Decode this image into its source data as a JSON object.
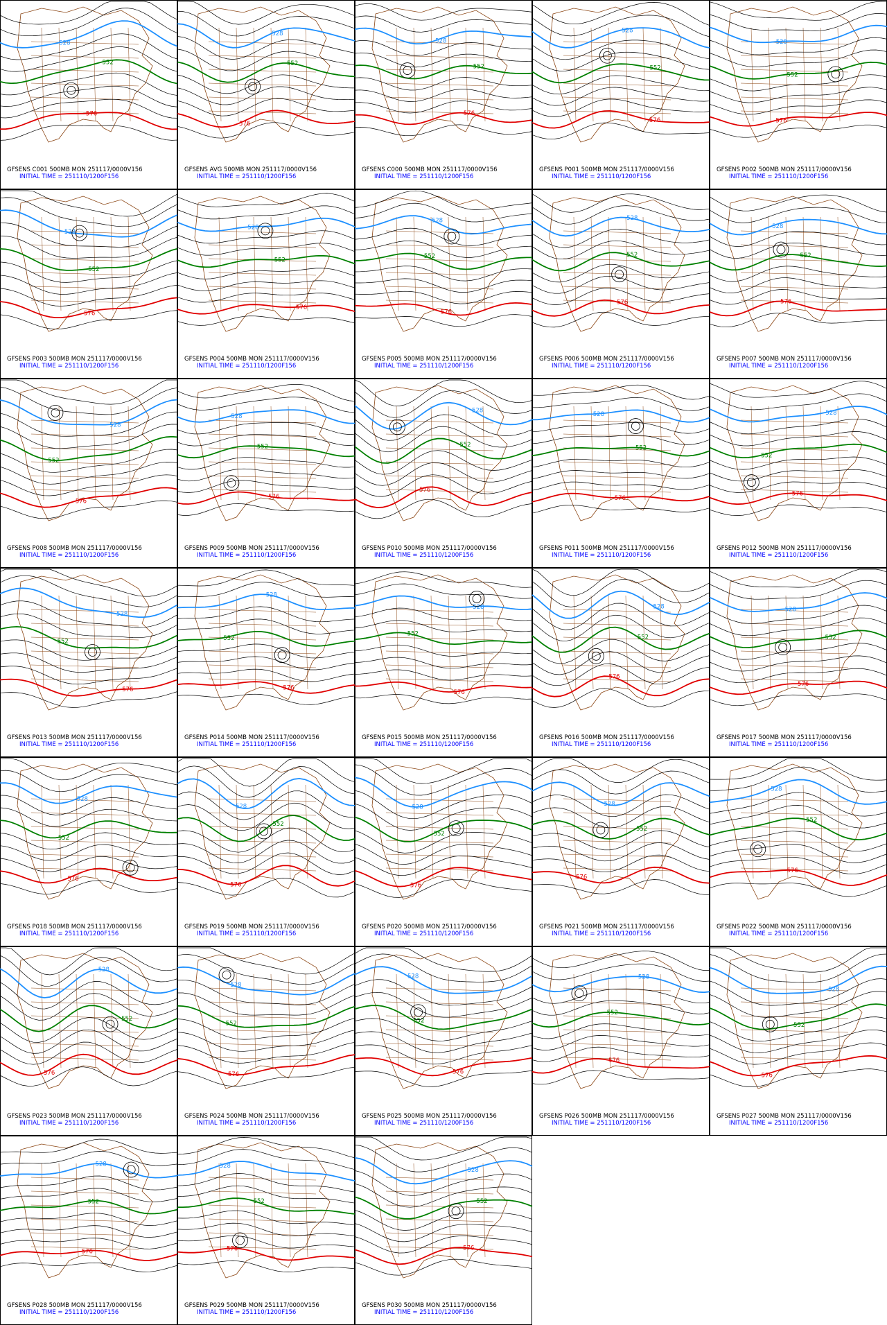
{
  "contour_labels": {
    "blue": "528",
    "green": "552",
    "red": "576"
  },
  "panels": [
    {
      "line1": "GFSENS C001 500MB MON 251117/0000V156",
      "line2": "INITIAL TIME = 251110/1200F156"
    },
    {
      "line1": "GFSENS AVG 500MB MON 251117/0000V156",
      "line2": "INITIAL TIME = 251110/1200F156"
    },
    {
      "line1": "GFSENS C000 500MB MON 251117/0000V156",
      "line2": "INITIAL TIME = 251110/1200F156"
    },
    {
      "line1": "GFSENS P001 500MB MON 251117/0000V156",
      "line2": "INITIAL TIME = 251110/1200F156"
    },
    {
      "line1": "GFSENS P002 500MB MON 251117/0000V156",
      "line2": "INITIAL TIME = 251110/1200F156"
    },
    {
      "line1": "GFSENS P003 500MB MON 251117/0000V156",
      "line2": "INITIAL TIME = 251110/1200F156"
    },
    {
      "line1": "GFSENS P004 500MB MON 251117/0000V156",
      "line2": "INITIAL TIME = 251110/1200F156"
    },
    {
      "line1": "GFSENS P005 500MB MON 251117/0000V156",
      "line2": "INITIAL TIME = 251110/1200F156"
    },
    {
      "line1": "GFSENS P006 500MB MON 251117/0000V156",
      "line2": "INITIAL TIME = 251110/1200F156"
    },
    {
      "line1": "GFSENS P007 500MB MON 251117/0000V156",
      "line2": "INITIAL TIME = 251110/1200F156"
    },
    {
      "line1": "GFSENS P008 500MB MON 251117/0000V156",
      "line2": "INITIAL TIME = 251110/1200F156"
    },
    {
      "line1": "GFSENS P009 500MB MON 251117/0000V156",
      "line2": "INITIAL TIME = 251110/1200F156"
    },
    {
      "line1": "GFSENS P010 500MB MON 251117/0000V156",
      "line2": "INITIAL TIME = 251110/1200F156"
    },
    {
      "line1": "GFSENS P011 500MB MON 251117/0000V156",
      "line2": "INITIAL TIME = 251110/1200F156"
    },
    {
      "line1": "GFSENS P012 500MB MON 251117/0000V156",
      "line2": "INITIAL TIME = 251110/1200F156"
    },
    {
      "line1": "GFSENS P013 500MB MON 251117/0000V156",
      "line2": "INITIAL TIME = 251110/1200F156"
    },
    {
      "line1": "GFSENS P014 500MB MON 251117/0000V156",
      "line2": "INITIAL TIME = 251110/1200F156"
    },
    {
      "line1": "GFSENS P015 500MB MON 251117/0000V156",
      "line2": "INITIAL TIME = 251110/1200F156"
    },
    {
      "line1": "GFSENS P016 500MB MON 251117/0000V156",
      "line2": "INITIAL TIME = 251110/1200F156"
    },
    {
      "line1": "GFSENS P017 500MB MON 251117/0000V156",
      "line2": "INITIAL TIME = 251110/1200F156"
    },
    {
      "line1": "GFSENS P018 500MB MON 251117/0000V156",
      "line2": "INITIAL TIME = 251110/1200F156"
    },
    {
      "line1": "GFSENS P019 500MB MON 251117/0000V156",
      "line2": "INITIAL TIME = 251110/1200F156"
    },
    {
      "line1": "GFSENS P020 500MB MON 251117/0000V156",
      "line2": "INITIAL TIME = 251110/1200F156"
    },
    {
      "line1": "GFSENS P021 500MB MON 251117/0000V156",
      "line2": "INITIAL TIME = 251110/1200F156"
    },
    {
      "line1": "GFSENS P022 500MB MON 251117/0000V156",
      "line2": "INITIAL TIME = 251110/1200F156"
    },
    {
      "line1": "GFSENS P023 500MB MON 251117/0000V156",
      "line2": "INITIAL TIME = 251110/1200F156"
    },
    {
      "line1": "GFSENS P024 500MB MON 251117/0000V156",
      "line2": "INITIAL TIME = 251110/1200F156"
    },
    {
      "line1": "GFSENS P025 500MB MON 251117/0000V156",
      "line2": "INITIAL TIME = 251110/1200F156"
    },
    {
      "line1": "GFSENS P026 500MB MON 251117/0000V156",
      "line2": "INITIAL TIME = 251110/1200F156"
    },
    {
      "line1": "GFSENS P027 500MB MON 251117/0000V156",
      "line2": "INITIAL TIME = 251110/1200F156"
    },
    {
      "line1": "GFSENS P028 500MB MON 251117/0000V156",
      "line2": "INITIAL TIME = 251110/1200F156"
    },
    {
      "line1": "GFSENS P029 500MB MON 251117/0000V156",
      "line2": "INITIAL TIME = 251110/1200F156"
    },
    {
      "line1": "GFSENS P030 500MB MON 251117/0000V156",
      "line2": "INITIAL TIME = 251110/1200F156"
    }
  ]
}
